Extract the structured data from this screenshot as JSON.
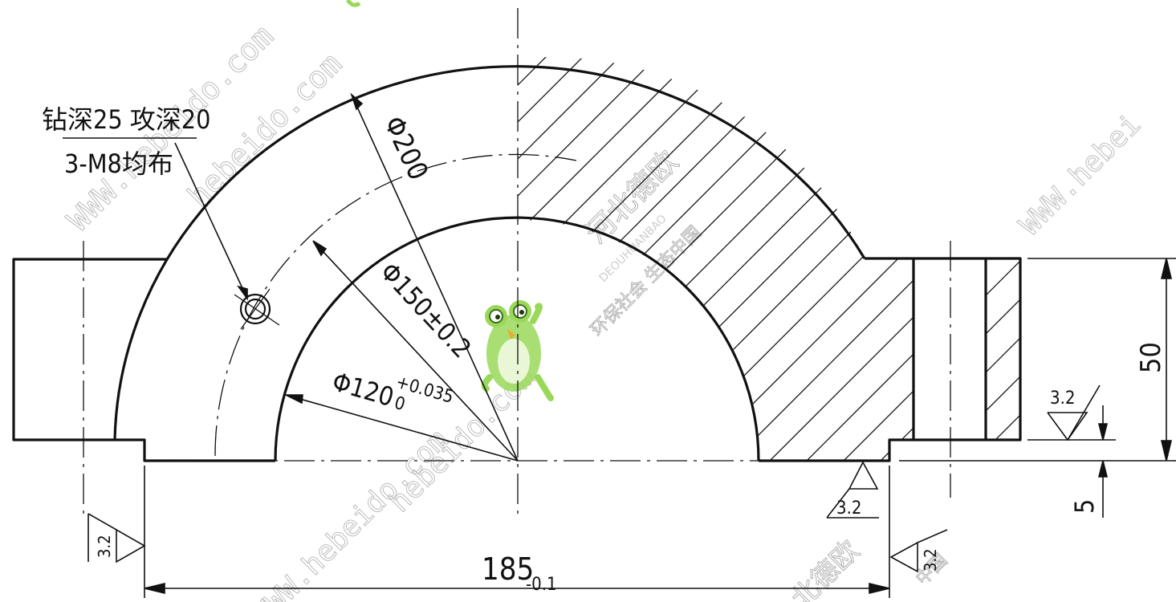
{
  "annotations": {
    "hole_note_top": "钻深25 攻深20",
    "hole_note_bottom": "3-M8均布",
    "outer_diameter": "Φ200",
    "bolt_circle_diameter": "Φ150±0.2",
    "bore_diameter": "Φ120",
    "bore_tol_upper": "+0.035",
    "bore_tol_lower": "0",
    "overall_length": "185",
    "overall_length_tol": "-0.1",
    "height": "50",
    "step_depth": "5",
    "roughness_right_top": "3.2",
    "roughness_right_bottom": "3.2",
    "roughness_left_end": "3.2",
    "roughness_right_end": "3.2"
  },
  "watermarks": {
    "url_1": "hebeido.com",
    "url_2": "WWW.hebeido.com",
    "url_3": "WWW.hebei",
    "url_4": "hebeido.com",
    "url_5": "WWW.hebeido.com",
    "brand_cn": "河北德欧",
    "brand_en": "DEOUHUANBAO",
    "slogan_cn": "环保社会 生态中国",
    "brand_cn_2": "北德欧",
    "slogan_cn_2": "中国"
  },
  "colors": {
    "line": "#111111",
    "watermark": "#b5b5b5",
    "logo_green": "#8fd14f"
  }
}
